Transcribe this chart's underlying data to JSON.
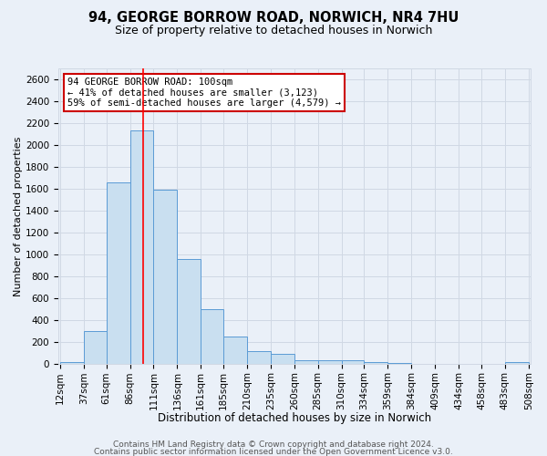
{
  "title1": "94, GEORGE BORROW ROAD, NORWICH, NR4 7HU",
  "title2": "Size of property relative to detached houses in Norwich",
  "xlabel": "Distribution of detached houses by size in Norwich",
  "ylabel": "Number of detached properties",
  "footnote1": "Contains HM Land Registry data © Crown copyright and database right 2024.",
  "footnote2": "Contains public sector information licensed under the Open Government Licence v3.0.",
  "annotation_line1": "94 GEORGE BORROW ROAD: 100sqm",
  "annotation_line2": "← 41% of detached houses are smaller (3,123)",
  "annotation_line3": "59% of semi-detached houses are larger (4,579) →",
  "bar_edges": [
    12,
    37,
    61,
    86,
    111,
    136,
    161,
    185,
    210,
    235,
    260,
    285,
    310,
    334,
    359,
    384,
    409,
    434,
    458,
    483,
    508
  ],
  "bar_heights": [
    20,
    300,
    1660,
    2130,
    1590,
    960,
    505,
    250,
    120,
    95,
    40,
    35,
    35,
    20,
    15,
    5,
    5,
    5,
    2,
    20
  ],
  "bar_color": "#c9dff0",
  "bar_edge_color": "#5b9bd5",
  "red_line_x": 100,
  "ylim": [
    0,
    2700
  ],
  "yticks": [
    0,
    200,
    400,
    600,
    800,
    1000,
    1200,
    1400,
    1600,
    1800,
    2000,
    2200,
    2400,
    2600
  ],
  "grid_color": "#d0d8e4",
  "bg_color": "#eaf0f8",
  "annotation_box_color": "#ffffff",
  "annotation_box_edge": "#cc0000",
  "title1_fontsize": 10.5,
  "title2_fontsize": 9,
  "xlabel_fontsize": 8.5,
  "ylabel_fontsize": 8,
  "tick_fontsize": 7.5,
  "annotation_fontsize": 7.5,
  "footnote_fontsize": 6.5
}
